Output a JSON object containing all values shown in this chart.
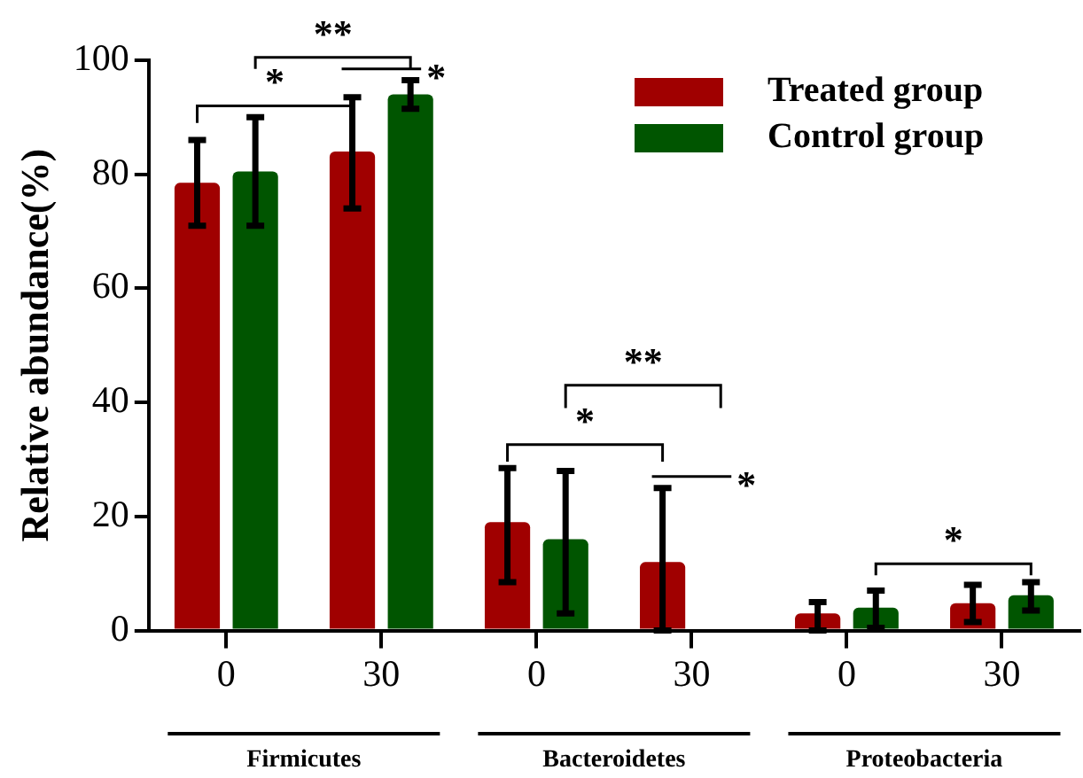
{
  "chart_data": {
    "type": "bar",
    "ylabel": "Relative abundance(%)",
    "categories": [
      "0",
      "30",
      "0",
      "30",
      "0",
      "30"
    ],
    "series": [
      {
        "name": "Treated group",
        "color": "#a00000",
        "values": [
          78.5,
          84,
          19,
          12,
          3,
          4.8
        ],
        "errors": [
          [
            71,
            86
          ],
          [
            74,
            93.5
          ],
          [
            8.5,
            28.5
          ],
          [
            0,
            25
          ],
          [
            0,
            5
          ],
          [
            1.5,
            8
          ]
        ]
      },
      {
        "name": "Control group",
        "color": "#005500",
        "values": [
          80.5,
          94,
          16,
          null,
          4,
          6.2
        ],
        "errors": [
          [
            71,
            90
          ],
          [
            91.5,
            96.5
          ],
          [
            3,
            28
          ],
          null,
          [
            0.5,
            7
          ],
          [
            3.5,
            8.5
          ]
        ]
      }
    ],
    "ylim": [
      0,
      100
    ],
    "yticks": [
      0,
      20,
      40,
      60,
      80,
      100
    ],
    "grid": false,
    "legend": "top right",
    "annotations": [
      "*",
      "**",
      "*",
      "*",
      "**",
      "*",
      "*",
      "Firmicutes",
      "Bacteroidetes",
      "Proteobacteria"
    ]
  }
}
